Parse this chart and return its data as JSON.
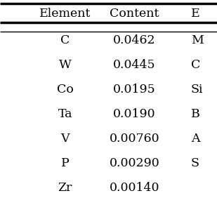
{
  "col_headers": [
    "Element",
    "Content",
    "E"
  ],
  "rows": [
    [
      "C",
      "0.0462",
      "M"
    ],
    [
      "W",
      "0.0445",
      "C"
    ],
    [
      "Co",
      "0.0195",
      "Si"
    ],
    [
      "Ta",
      "0.0190",
      "B"
    ],
    [
      "V",
      "0.00760",
      "A"
    ],
    [
      "P",
      "0.00290",
      "S"
    ],
    [
      "Zr",
      "0.00140",
      ""
    ]
  ],
  "bg_color": "#ffffff",
  "text_color": "#000000",
  "header_fontsize": 12.5,
  "cell_fontsize": 12.5
}
